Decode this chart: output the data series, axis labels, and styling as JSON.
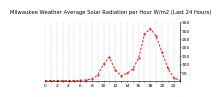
{
  "title": "Milwaukee Weather Average Solar Radiation per Hour W/m2 (Last 24 Hours)",
  "x_values": [
    0,
    1,
    2,
    3,
    4,
    5,
    6,
    7,
    8,
    9,
    10,
    11,
    12,
    13,
    14,
    15,
    16,
    17,
    18,
    19,
    20,
    21,
    22,
    23
  ],
  "y_values": [
    2,
    2,
    2,
    2,
    2,
    2,
    3,
    5,
    12,
    35,
    100,
    140,
    65,
    30,
    45,
    70,
    135,
    275,
    310,
    265,
    170,
    75,
    18,
    4
  ],
  "line_color": "#ff0000",
  "background_color": "#ffffff",
  "grid_color": "#888888",
  "ylim": [
    0,
    350
  ],
  "xlim": [
    0,
    23
  ],
  "ytick_values": [
    50,
    100,
    150,
    200,
    250,
    300,
    350
  ],
  "ytick_labels": [
    "50",
    "100",
    "150",
    "200",
    "250",
    "300",
    "350"
  ],
  "xtick_values": [
    0,
    1,
    2,
    3,
    4,
    5,
    6,
    7,
    8,
    9,
    10,
    11,
    12,
    13,
    14,
    15,
    16,
    17,
    18,
    19,
    20,
    21,
    22,
    23
  ],
  "ylabel_fontsize": 3.2,
  "xlabel_fontsize": 3.2,
  "title_fontsize": 3.8,
  "line_width": 0.65,
  "marker_size": 1.0
}
